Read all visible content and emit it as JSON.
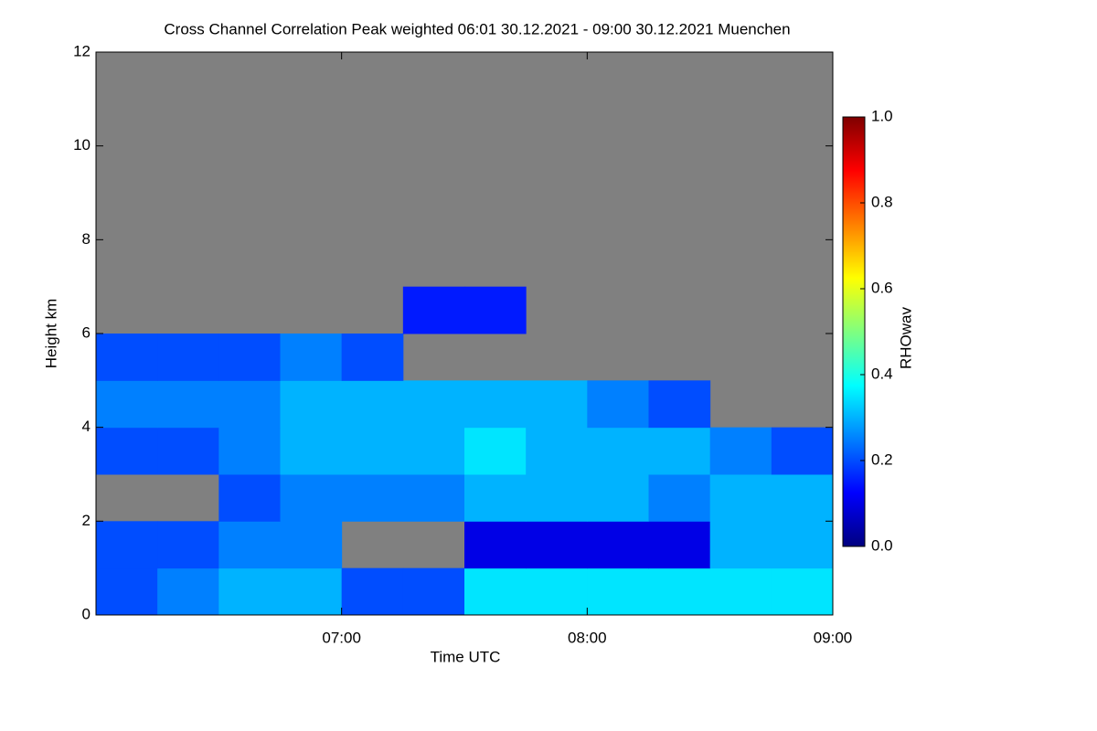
{
  "chart_data": {
    "type": "heatmap",
    "title": "Cross Channel Correlation Peak weighted   06:01 30.12.2021 - 09:00 30.12.2021 Muenchen",
    "x_label": "Time UTC",
    "y_label": "Height km",
    "colorbar_label": "RHOwav",
    "xlim": [
      6,
      9
    ],
    "xticks": [
      {
        "value": 7,
        "label": "07:00"
      },
      {
        "value": 8,
        "label": "08:00"
      },
      {
        "value": 9,
        "label": "09:00"
      }
    ],
    "ylim": [
      0,
      12
    ],
    "yticks": [
      0,
      2,
      4,
      6,
      8,
      10,
      12
    ],
    "zlim": [
      0,
      1
    ],
    "colorbar_ticks": [
      {
        "value": 0,
        "label": "0.0"
      },
      {
        "value": 0.2,
        "label": "0.2"
      },
      {
        "value": 0.4,
        "label": "0.4"
      },
      {
        "value": 0.6,
        "label": "0.6"
      },
      {
        "value": 0.8,
        "label": "0.8"
      },
      {
        "value": 1,
        "label": "1.0"
      }
    ],
    "x_bins": [
      6,
      6.25,
      6.5,
      6.75,
      7,
      7.25,
      7.5,
      7.75,
      8,
      8.25,
      8.5,
      8.75,
      9
    ],
    "y_bins": [
      0,
      1,
      2,
      3,
      4,
      5,
      6,
      7,
      8,
      9,
      10,
      11,
      12
    ],
    "missing_color": "#808080",
    "z": [
      [
        0.2,
        0.25,
        0.3,
        0.3,
        0.2,
        0.2,
        0.35,
        0.35,
        0.35,
        0.35,
        0.35,
        0.35
      ],
      [
        0.2,
        0.2,
        0.25,
        0.25,
        null,
        null,
        0.1,
        0.1,
        0.1,
        0.1,
        0.3,
        0.3
      ],
      [
        null,
        null,
        0.2,
        0.25,
        0.25,
        0.25,
        0.3,
        0.3,
        0.3,
        0.25,
        0.3,
        0.3
      ],
      [
        0.2,
        0.2,
        0.25,
        0.3,
        0.3,
        0.3,
        0.35,
        0.3,
        0.3,
        0.3,
        0.25,
        0.2
      ],
      [
        0.25,
        0.25,
        0.25,
        0.3,
        0.3,
        0.3,
        0.3,
        0.3,
        0.25,
        0.2,
        null,
        null
      ],
      [
        0.2,
        0.2,
        0.2,
        0.25,
        0.2,
        null,
        null,
        null,
        null,
        null,
        null,
        null
      ],
      [
        null,
        null,
        null,
        null,
        null,
        0.15,
        0.15,
        null,
        null,
        null,
        null,
        null
      ],
      [
        null,
        null,
        null,
        null,
        null,
        null,
        null,
        null,
        null,
        null,
        null,
        null
      ],
      [
        null,
        null,
        null,
        null,
        null,
        null,
        null,
        null,
        null,
        null,
        null,
        null
      ],
      [
        null,
        null,
        null,
        null,
        null,
        null,
        null,
        null,
        null,
        null,
        null,
        null
      ],
      [
        null,
        null,
        null,
        null,
        null,
        null,
        null,
        null,
        null,
        null,
        null,
        null
      ],
      [
        null,
        null,
        null,
        null,
        null,
        null,
        null,
        null,
        null,
        null,
        null,
        null
      ]
    ]
  }
}
